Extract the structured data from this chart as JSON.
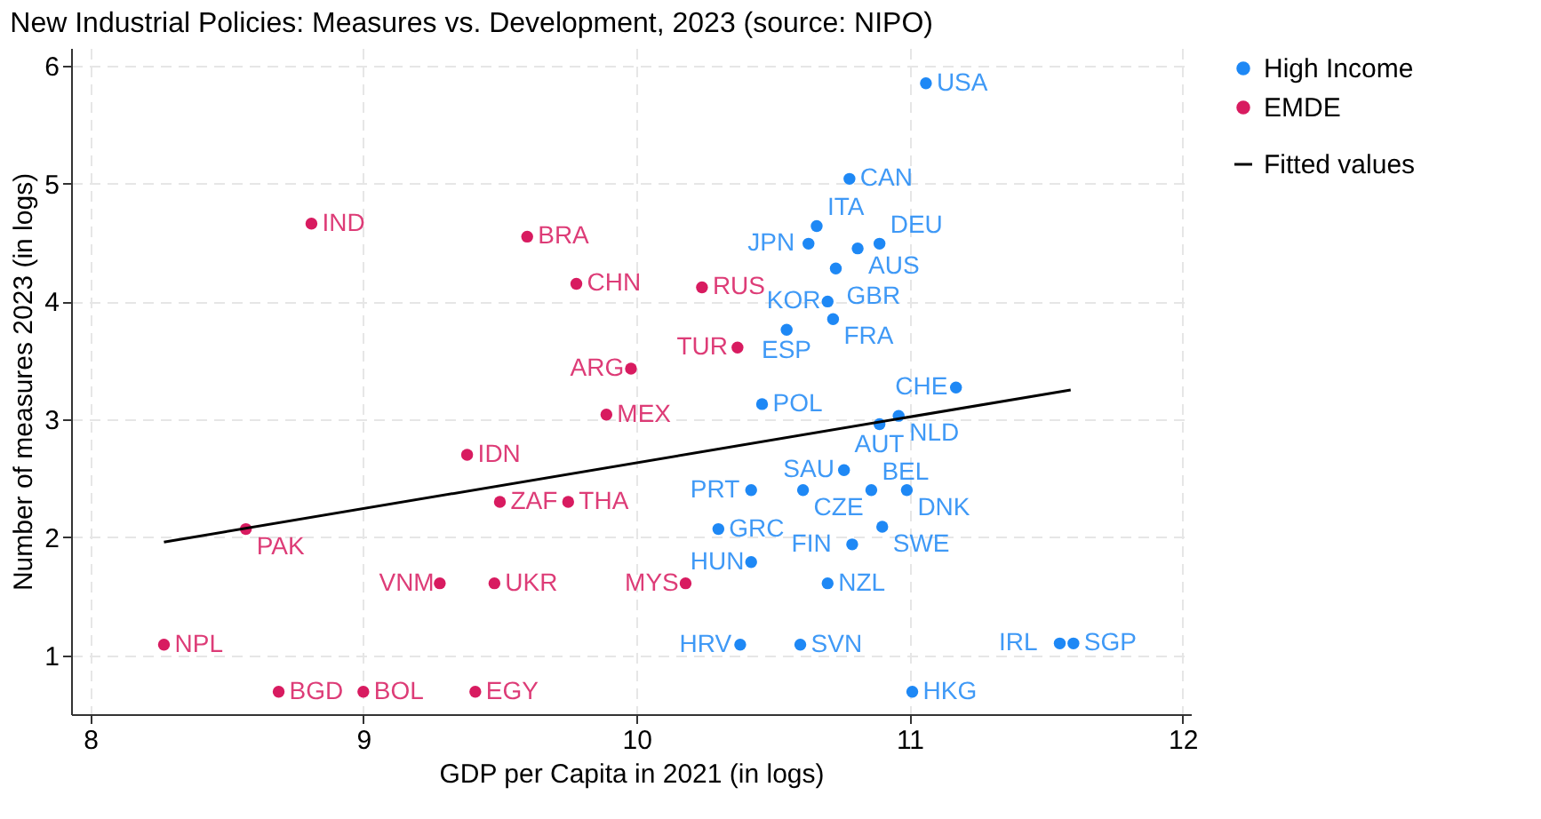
{
  "chart_data": {
    "type": "scatter",
    "title": "New Industrial Policies: Measures vs. Development, 2023 (source: NIPO)",
    "xlabel": "GDP per Capita in 2021 (in logs)",
    "ylabel": "Number of measures 2023 (in logs)",
    "xlim": [
      7.93,
      12.03
    ],
    "xticks": [
      8,
      9,
      10,
      11,
      12
    ],
    "ylim": [
      0.5,
      6.15
    ],
    "yticks": [
      1,
      2,
      3,
      4,
      5,
      6
    ],
    "grid": true,
    "legend": "right",
    "marker": "circle",
    "series": [
      {
        "name": "High Income",
        "color": "#1e88f5",
        "x": [
          11.06,
          10.78,
          10.66,
          10.63,
          10.81,
          10.89,
          10.73,
          10.7,
          10.72,
          10.55,
          10.46,
          11.17,
          10.96,
          10.89,
          10.76,
          10.42,
          10.61,
          10.86,
          10.99,
          10.3,
          10.9,
          10.79,
          10.42,
          10.7,
          10.38,
          10.6,
          11.55,
          11.6,
          11.01
        ],
        "values": [
          5.85,
          5.04,
          4.64,
          4.49,
          4.45,
          4.49,
          4.28,
          4.0,
          3.85,
          3.76,
          3.13,
          3.27,
          3.03,
          2.96,
          2.57,
          2.4,
          2.4,
          2.4,
          2.4,
          2.07,
          2.09,
          1.94,
          1.79,
          1.61,
          1.09,
          1.09,
          1.1,
          1.1,
          0.69
        ],
        "value_labels": [
          "USA",
          "CAN",
          "ITA",
          "JPN",
          "AUS",
          "DEU",
          "GBR",
          "KOR",
          "FRA",
          "ESP",
          "POL",
          "CHE",
          "NLD",
          "AUT",
          "SAU",
          "PRT",
          "CZE",
          "BEL",
          "DNK",
          "GRC",
          "SWE",
          "FIN",
          "HUN",
          "NZL",
          "HRV",
          "SVN",
          "IRL",
          "SGP",
          "HKG"
        ]
      },
      {
        "name": "EMDE",
        "color": "#d81b60",
        "x": [
          10.24,
          10.37,
          8.81,
          9.6,
          9.78,
          9.98,
          9.89,
          9.38,
          9.5,
          9.75,
          8.57,
          9.28,
          9.48,
          10.18,
          8.27,
          8.69,
          9.0,
          9.41
        ],
        "values": [
          4.12,
          3.61,
          4.66,
          4.55,
          4.15,
          3.43,
          3.04,
          2.7,
          2.3,
          2.3,
          2.07,
          1.61,
          1.61,
          1.61,
          1.09,
          0.69,
          0.69,
          0.69
        ],
        "value_labels": [
          "RUS",
          "TUR",
          "IND",
          "BRA",
          "CHN",
          "ARG",
          "MEX",
          "IDN",
          "ZAF",
          "THA",
          "PAK",
          "VNM",
          "UKR",
          "MYS",
          "NPL",
          "BGD",
          "BOL",
          "EGY"
        ]
      },
      {
        "name": "Fitted values",
        "color": "#000000",
        "type": "line",
        "line_style": "solid",
        "marker": "none",
        "x": [
          8.27,
          11.59
        ],
        "values": [
          1.96,
          3.25
        ]
      }
    ]
  }
}
